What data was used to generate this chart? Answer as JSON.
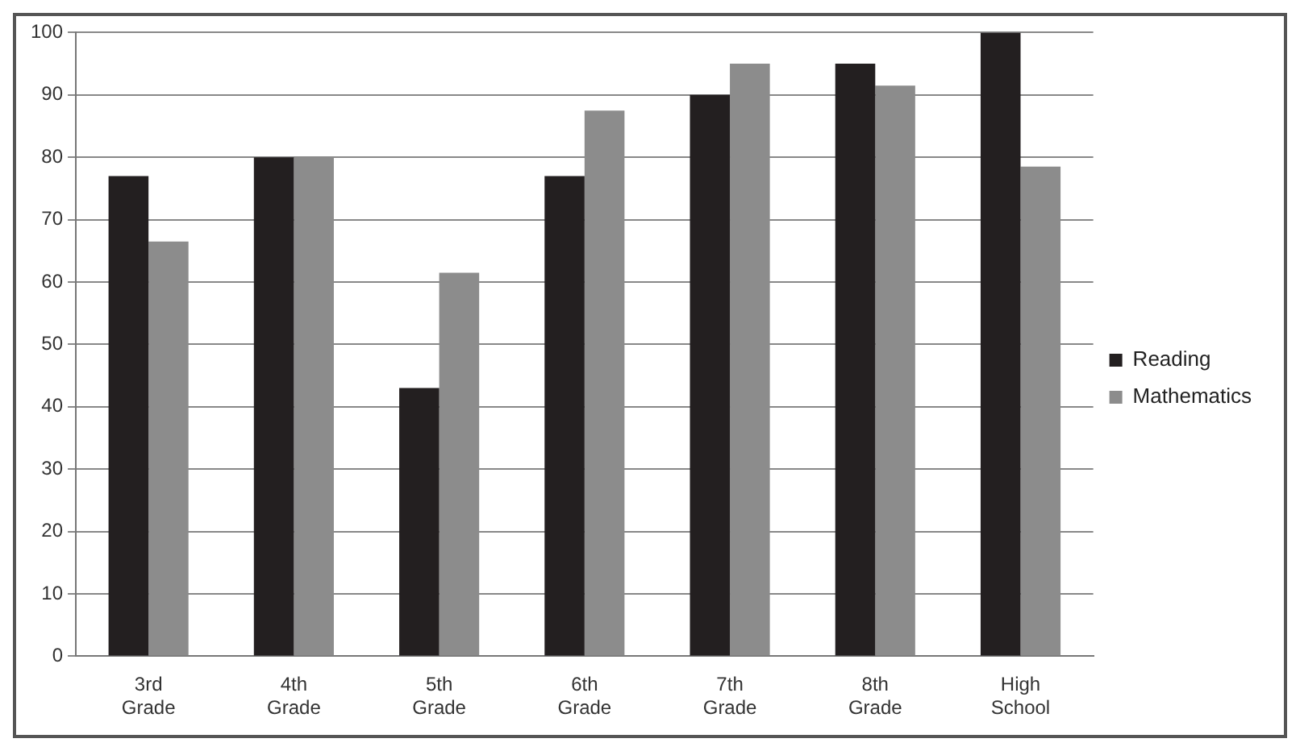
{
  "chart_data": {
    "type": "bar",
    "categories": [
      "3rd Grade",
      "4th Grade",
      "5th Grade",
      "6th Grade",
      "7th Grade",
      "8th Grade",
      "High School"
    ],
    "series": [
      {
        "name": "Reading",
        "color": "#231f20",
        "values": [
          77,
          80,
          43,
          77,
          90,
          95,
          100
        ]
      },
      {
        "name": "Mathematics",
        "color": "#8c8c8c",
        "values": [
          66.5,
          80,
          61.5,
          87.5,
          95,
          91.5,
          78.5
        ]
      }
    ],
    "ylim": [
      0,
      100
    ],
    "yticks": [
      0,
      10,
      20,
      30,
      40,
      50,
      60,
      70,
      80,
      90,
      100
    ],
    "grid": "y",
    "legend": "right"
  }
}
